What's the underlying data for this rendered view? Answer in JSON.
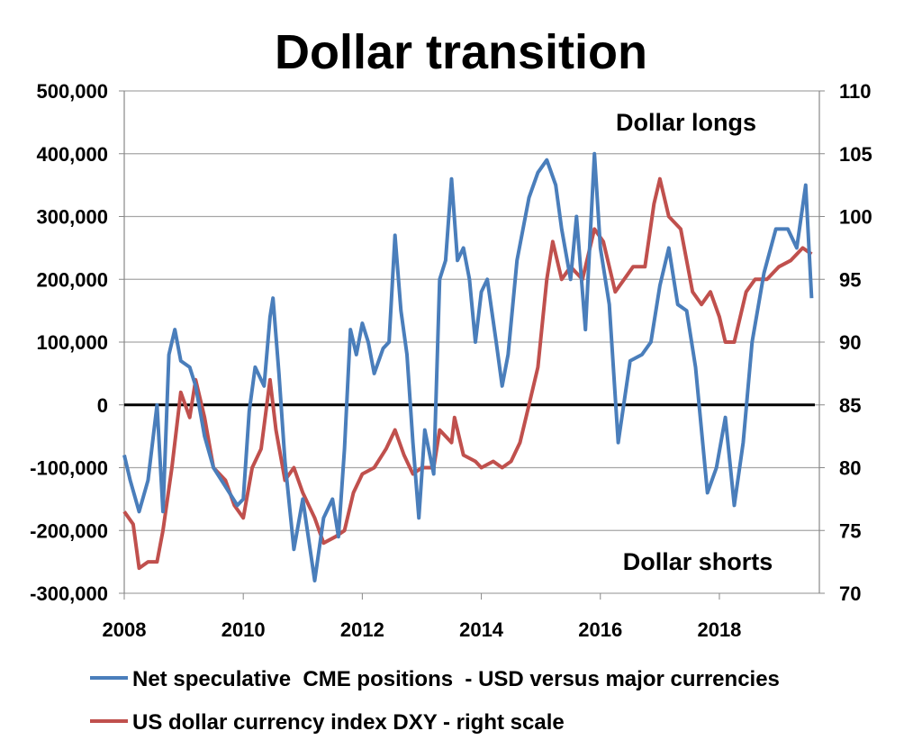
{
  "chart_data": {
    "type": "line",
    "title": "Dollar transition",
    "annotations": [
      "Dollar longs",
      "Dollar shorts"
    ],
    "x_ticks": [
      "2008",
      "2010",
      "2012",
      "2014",
      "2016",
      "2018"
    ],
    "xlim": [
      2008,
      2019.68
    ],
    "y_left": {
      "ticks": [
        "500,000",
        "400,000",
        "300,000",
        "200,000",
        "100,000",
        "0",
        "-100,000",
        "-200,000",
        "-300,000"
      ],
      "ylim": [
        -300000,
        500000
      ]
    },
    "y_right": {
      "ticks": [
        "110",
        "105",
        "100",
        "95",
        "90",
        "85",
        "80",
        "75",
        "70"
      ],
      "ylim": [
        70,
        110
      ]
    },
    "zero_line": 0,
    "grid": true,
    "legend_placement": "bottom",
    "series": [
      {
        "name": "Net speculative  CME positions  - USD versus major currencies",
        "axis": "left",
        "color": "#4a7ebb",
        "x": [
          2008.0,
          2008.1,
          2008.25,
          2008.4,
          2008.55,
          2008.65,
          2008.75,
          2008.85,
          2008.95,
          2009.1,
          2009.2,
          2009.35,
          2009.5,
          2009.7,
          2009.9,
          2010.0,
          2010.1,
          2010.2,
          2010.35,
          2010.45,
          2010.5,
          2010.6,
          2010.7,
          2010.85,
          2011.0,
          2011.2,
          2011.35,
          2011.5,
          2011.6,
          2011.7,
          2011.8,
          2011.9,
          2012.0,
          2012.1,
          2012.2,
          2012.35,
          2012.45,
          2012.55,
          2012.65,
          2012.75,
          2012.85,
          2012.95,
          2013.05,
          2013.2,
          2013.3,
          2013.4,
          2013.5,
          2013.6,
          2013.7,
          2013.8,
          2013.9,
          2014.0,
          2014.1,
          2014.25,
          2014.35,
          2014.45,
          2014.6,
          2014.8,
          2014.95,
          2015.1,
          2015.25,
          2015.35,
          2015.5,
          2015.6,
          2015.75,
          2015.9,
          2016.0,
          2016.15,
          2016.3,
          2016.5,
          2016.7,
          2016.85,
          2017.0,
          2017.15,
          2017.3,
          2017.45,
          2017.6,
          2017.8,
          2017.95,
          2018.1,
          2018.25,
          2018.4,
          2018.55,
          2018.75,
          2018.95,
          2019.15,
          2019.3,
          2019.45,
          2019.55
        ],
        "values": [
          -80000,
          -120000,
          -170000,
          -120000,
          0,
          -170000,
          80000,
          120000,
          70000,
          60000,
          30000,
          -50000,
          -100000,
          -130000,
          -160000,
          -150000,
          -10000,
          60000,
          30000,
          140000,
          170000,
          50000,
          -90000,
          -230000,
          -150000,
          -280000,
          -180000,
          -150000,
          -210000,
          -70000,
          120000,
          80000,
          130000,
          100000,
          50000,
          90000,
          100000,
          270000,
          150000,
          80000,
          -60000,
          -180000,
          -40000,
          -110000,
          200000,
          230000,
          360000,
          230000,
          250000,
          200000,
          100000,
          180000,
          200000,
          100000,
          30000,
          80000,
          230000,
          330000,
          370000,
          390000,
          350000,
          280000,
          200000,
          300000,
          120000,
          400000,
          250000,
          160000,
          -60000,
          70000,
          80000,
          100000,
          190000,
          250000,
          160000,
          150000,
          60000,
          -140000,
          -100000,
          -20000,
          -160000,
          -60000,
          100000,
          210000,
          280000,
          280000,
          250000,
          350000,
          170000
        ]
      },
      {
        "name": "US dollar currency index DXY - right scale",
        "axis": "right",
        "color": "#c0504d",
        "x": [
          2008.0,
          2008.15,
          2008.25,
          2008.4,
          2008.55,
          2008.65,
          2008.8,
          2008.95,
          2009.1,
          2009.2,
          2009.35,
          2009.5,
          2009.7,
          2009.85,
          2010.0,
          2010.15,
          2010.3,
          2010.45,
          2010.55,
          2010.7,
          2010.85,
          2011.0,
          2011.2,
          2011.35,
          2011.55,
          2011.7,
          2011.85,
          2012.0,
          2012.2,
          2012.4,
          2012.55,
          2012.7,
          2012.85,
          2013.0,
          2013.2,
          2013.3,
          2013.5,
          2013.55,
          2013.7,
          2013.9,
          2014.0,
          2014.2,
          2014.35,
          2014.5,
          2014.65,
          2014.8,
          2014.95,
          2015.1,
          2015.2,
          2015.35,
          2015.5,
          2015.7,
          2015.9,
          2016.05,
          2016.25,
          2016.4,
          2016.55,
          2016.75,
          2016.9,
          2017.0,
          2017.15,
          2017.35,
          2017.55,
          2017.7,
          2017.85,
          2018.0,
          2018.1,
          2018.25,
          2018.45,
          2018.6,
          2018.8,
          2019.0,
          2019.2,
          2019.4,
          2019.55
        ],
        "values": [
          76.5,
          75.5,
          72,
          72.5,
          72.5,
          75,
          80,
          86,
          84,
          87,
          84,
          80,
          79,
          77,
          76,
          80,
          81.5,
          87,
          83,
          79,
          80,
          78,
          76,
          74,
          74.5,
          75,
          78,
          79.5,
          80,
          81.5,
          83,
          81,
          79.5,
          80,
          80,
          83,
          82,
          84,
          81,
          80.5,
          80,
          80.5,
          80,
          80.5,
          82,
          85,
          88,
          95,
          98,
          95,
          96,
          95,
          99,
          98,
          94,
          95,
          96,
          96,
          101,
          103,
          100,
          99,
          94,
          93,
          94,
          92,
          90,
          90,
          94,
          95,
          95,
          96,
          96.5,
          97.5,
          97
        ]
      }
    ]
  }
}
